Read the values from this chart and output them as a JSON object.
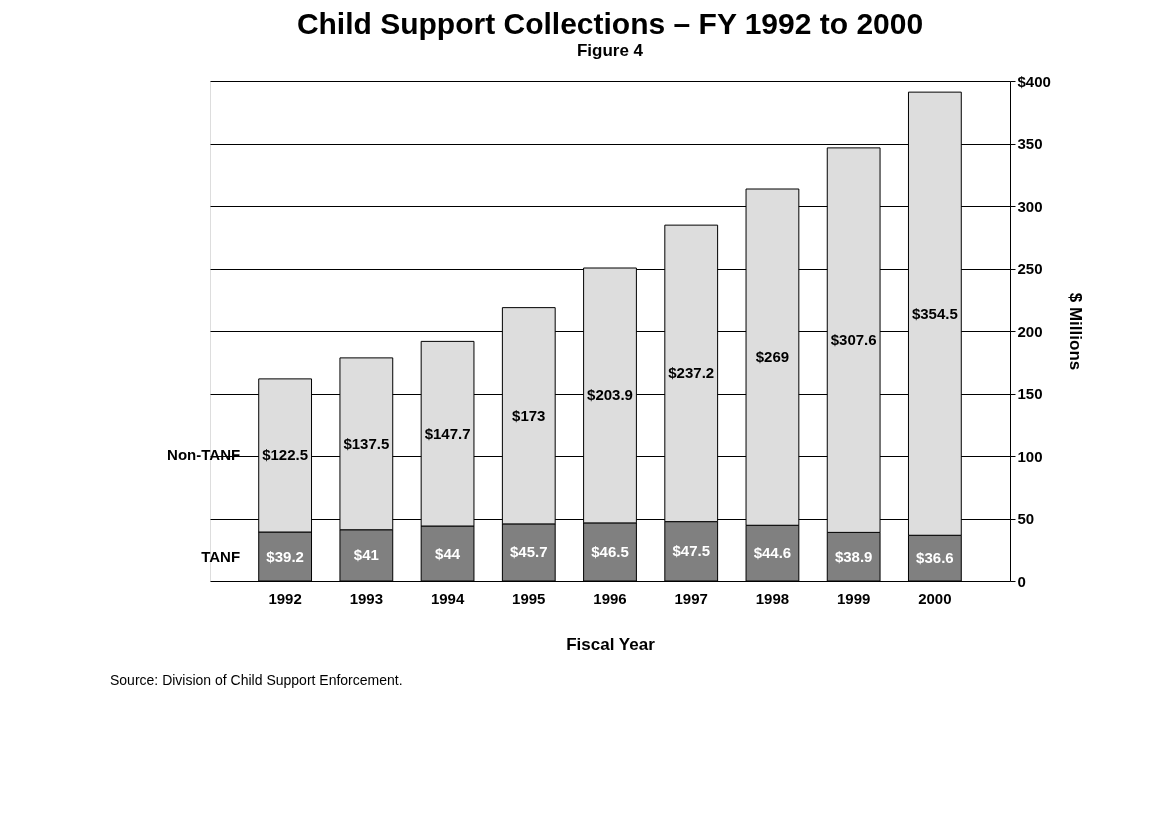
{
  "chart_data": {
    "type": "bar",
    "title": "Child Support Collections – FY 1992 to 2000",
    "xlabel": "Fiscal Year",
    "ylabel": "$ Millions",
    "stacked": true,
    "categories": [
      "1992",
      "1993",
      "1994",
      "1995",
      "1996",
      "1997",
      "1998",
      "1999",
      "2000"
    ],
    "series": [
      {
        "name": "TANF",
        "color": "#808080",
        "values": [
          39.2,
          41,
          44,
          45.7,
          46.5,
          47.5,
          44.6,
          38.9,
          36.6
        ],
        "value_labels": [
          "$39.2",
          "$41",
          "$44",
          "$45.7",
          "$46.5",
          "$47.5",
          "$44.6",
          "$38.9",
          "$36.6"
        ]
      },
      {
        "name": "Non-TANF",
        "color": "#dddddd",
        "values": [
          122.5,
          137.5,
          147.7,
          173,
          203.9,
          237.2,
          269,
          307.6,
          354.5
        ],
        "value_labels": [
          "$122.5",
          "$137.5",
          "$147.7",
          "$173",
          "$203.9",
          "$237.2",
          "$269",
          "$307.6",
          "$354.5"
        ]
      }
    ],
    "ylim": [
      0,
      400
    ],
    "yticks": [
      0,
      50,
      100,
      150,
      200,
      250,
      300,
      350,
      {
        "value": 400,
        "label": "$400"
      }
    ],
    "grid": "y",
    "annotations": [
      "Figure 4",
      "Source: Division of Child Support Enforcement."
    ]
  }
}
